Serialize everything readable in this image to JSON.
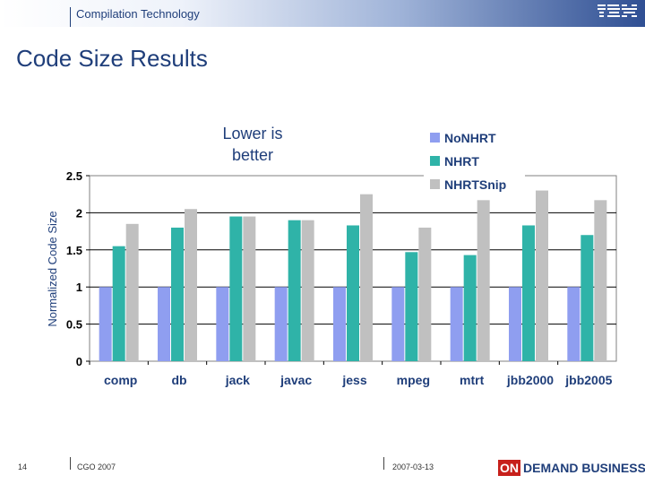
{
  "header": {
    "section_title": "Compilation Technology",
    "logo_text": "IBM"
  },
  "slide": {
    "title": "Code Size Results"
  },
  "chart_data": {
    "type": "bar",
    "title": "",
    "annotation": "Lower is\nbetter",
    "xlabel": "",
    "ylabel": "Normalized Code Size",
    "ylim": [
      0,
      2.5
    ],
    "yticks": [
      0,
      0.5,
      1,
      1.5,
      2,
      2.5
    ],
    "ytick_labels": [
      "0",
      "0.5",
      "1",
      "1.5",
      "2",
      "2.5"
    ],
    "grid": true,
    "legend_position": "top-right",
    "categories": [
      "comp",
      "db",
      "jack",
      "javac",
      "jess",
      "mpeg",
      "mtrt",
      "jbb2000",
      "jbb2005"
    ],
    "series": [
      {
        "name": "NoNHRT",
        "color": "#8f9ef0",
        "values": [
          1,
          1,
          1,
          1,
          1,
          1,
          1,
          1,
          1
        ]
      },
      {
        "name": "NHRT",
        "color": "#2fb3a8",
        "values": [
          1.55,
          1.8,
          1.95,
          1.9,
          1.83,
          1.47,
          1.43,
          1.83,
          1.7
        ]
      },
      {
        "name": "NHRTSnip",
        "color": "#c0c0c0",
        "values": [
          1.85,
          2.05,
          1.95,
          1.9,
          2.25,
          1.8,
          2.17,
          2.3,
          2.17
        ]
      }
    ]
  },
  "footer": {
    "page_number": "14",
    "conference": "CGO 2007",
    "date": "2007-03-13",
    "brand_on": "ON",
    "brand_rest": "DEMAND BUSINESS"
  }
}
